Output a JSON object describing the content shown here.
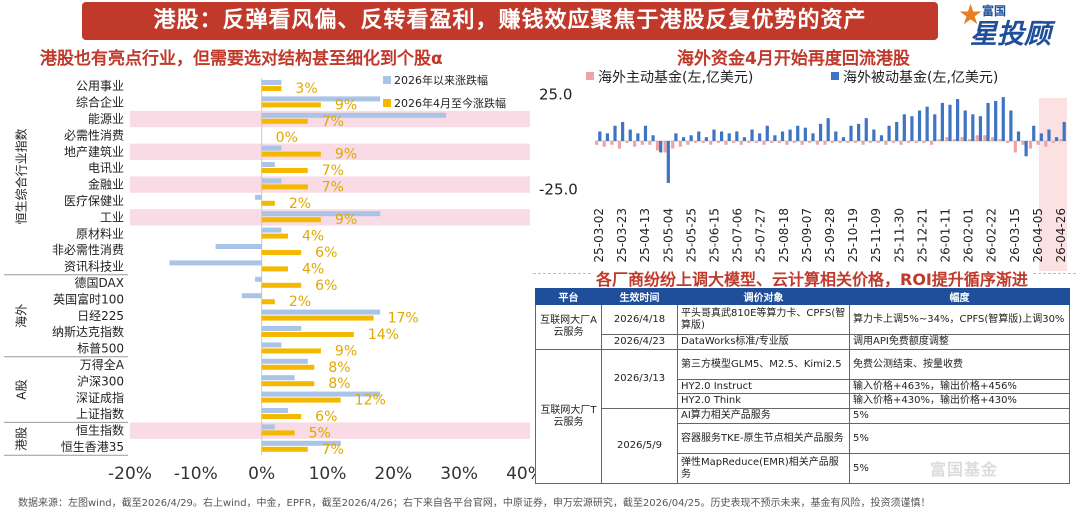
{
  "header": {
    "title": "港股：反弹看风偏、反转看盈利，赚钱效应聚焦于港股反复优势的资产"
  },
  "logo": {
    "small": "富国",
    "big": "星投顾"
  },
  "left_subtitle": "港股也有亮点行业，但需要选对结构甚至细化到个股α",
  "right_subtitle": "海外资金4月开始再度回流港股",
  "table_subtitle": "各厂商纷纷上调大模型、云计算相关价格，ROI提升循序渐进",
  "colors": {
    "title_bg": "#c0392b",
    "blue": "#a9c4e6",
    "gold": "#f5b800",
    "pink": "#f8dbe4",
    "active_blue": "#3f73c4",
    "active_red": "#f1a3a3"
  },
  "chart_data": [
    {
      "type": "bar",
      "orientation": "horizontal",
      "title": "港股也有亮点行业，但需要选对结构甚至细化到个股α",
      "categories": [
        "公用事业",
        "综合企业",
        "能源业",
        "必需性消费",
        "地产建筑业",
        "电讯业",
        "金融业",
        "医疗保健业",
        "工业",
        "原材料业",
        "非必需性消费",
        "资讯科技业",
        "德国DAX",
        "英国富时100",
        "日经225",
        "纳斯达克指数",
        "标普500",
        "万得全A",
        "沪深300",
        "深证成指",
        "上证指数",
        "恒生指数",
        "恒生香港35"
      ],
      "groups": [
        {
          "name": "恒生综合行业指数",
          "from": 0,
          "to": 11
        },
        {
          "name": "海外",
          "from": 12,
          "to": 16
        },
        {
          "name": "A股",
          "from": 17,
          "to": 20
        },
        {
          "name": "港股",
          "from": 21,
          "to": 22
        }
      ],
      "highlight_rows": [
        2,
        4,
        6,
        8,
        21
      ],
      "series": [
        {
          "name": "2026年以来涨跌幅",
          "color": "#a9c4e6",
          "values": [
            3,
            18,
            28,
            0,
            3,
            2,
            3,
            -1,
            18,
            3,
            -7,
            -14,
            -1,
            -3,
            18,
            6,
            3,
            7,
            5,
            18,
            4,
            2,
            12
          ]
        },
        {
          "name": "2026年4月至今涨跌幅",
          "color": "#f5b800",
          "values": [
            3,
            9,
            7,
            0,
            9,
            7,
            7,
            2,
            9,
            4,
            6,
            4,
            6,
            2,
            17,
            14,
            9,
            8,
            8,
            12,
            6,
            5,
            7
          ]
        }
      ],
      "data_labels": [
        "3%",
        "9%",
        "7%",
        "0%",
        "9%",
        "7%",
        "7%",
        "2%",
        "9%",
        "4%",
        "6%",
        "4%",
        "6%",
        "2%",
        "17%",
        "14%",
        "9%",
        "8%",
        "8%",
        "12%",
        "6%",
        "5%",
        "7%"
      ],
      "xticks": [
        "-20%",
        "-10%",
        "0%",
        "10%",
        "20%",
        "30%",
        "40%"
      ],
      "xlim": [
        -20,
        40
      ],
      "legend": "top-right"
    },
    {
      "type": "bar",
      "title": "海外资金4月开始再度回流港股",
      "series": [
        {
          "name": "海外主动基金(左,亿美元)",
          "color": "#f1a3a3",
          "values": [
            -2,
            -3,
            -2,
            -4,
            -1,
            -3,
            -2,
            -2,
            -5,
            -6,
            -4,
            -3,
            -2,
            -1,
            -1,
            -2,
            -1,
            -2,
            -1,
            -2,
            -1,
            -1,
            -2,
            -1,
            -1,
            -2,
            -1,
            -2,
            -1,
            -2,
            -2,
            -1,
            -1,
            -1,
            -1,
            -2,
            -1,
            -1,
            -2,
            -1,
            -2,
            -1,
            -1,
            -1,
            -2,
            1,
            2,
            1,
            2,
            1,
            3,
            3,
            2,
            1,
            -1,
            -6,
            -2,
            -4,
            -2,
            -3,
            -1,
            1
          ]
        },
        {
          "name": "海外被动基金(左,亿美元)",
          "color": "#3f73c4",
          "values": [
            5,
            4,
            8,
            10,
            6,
            4,
            8,
            3,
            -6,
            -22,
            4,
            2,
            3,
            5,
            2,
            6,
            5,
            4,
            5,
            2,
            6,
            4,
            8,
            3,
            5,
            6,
            8,
            7,
            4,
            9,
            12,
            5,
            2,
            8,
            9,
            12,
            6,
            3,
            8,
            10,
            14,
            13,
            16,
            18,
            14,
            20,
            19,
            22,
            16,
            14,
            13,
            20,
            21,
            23,
            16,
            5,
            -8,
            8,
            4,
            6,
            2,
            10
          ]
        }
      ],
      "xticks": [
        "25-03-02",
        "25-03-23",
        "25-04-13",
        "25-05-04",
        "25-05-25",
        "25-06-15",
        "25-07-06",
        "25-07-27",
        "25-08-18",
        "25-09-07",
        "25-09-28",
        "25-10-19",
        "25-11-09",
        "25-11-30",
        "25-12-21",
        "26-01-11",
        "26-02-01",
        "26-02-22",
        "26-03-15",
        "26-04-05",
        "26-04-26"
      ],
      "yticks": [
        "25.0",
        "-25.0"
      ],
      "ylim": [
        -32,
        32
      ],
      "legend": "top"
    }
  ],
  "table": {
    "headers": [
      "平台",
      "生效时间",
      "调价对象",
      "幅度"
    ],
    "blocks": [
      {
        "platform": "互联网大厂A云服务",
        "rows": [
          {
            "date": "2026/4/18",
            "object": "平头哥真武810E等算力卡、CPFS(智算版)",
            "range": "算力卡上调5%~34%，CPFS(智算版)上调30%"
          },
          {
            "date": "2026/4/23",
            "object": "DataWorks标准/专业版",
            "range": "调用API免费额度调整"
          }
        ]
      },
      {
        "platform": "互联网大厂T云服务",
        "rows": [
          {
            "date": "2026/3/13",
            "object": "第三方模型GLM5、M2.5、Kimi2.5",
            "range": "免费公测结束、按量收费"
          },
          {
            "date": "",
            "object": "HY2.0 Instruct",
            "range": "输入价格+463%，输出价格+456%"
          },
          {
            "date": "",
            "object": "HY2.0 Think",
            "range": "输入价格+430%，输出价格+430%"
          },
          {
            "date": "2026/5/9",
            "object": "AI算力相关产品服务",
            "range": "5%"
          },
          {
            "date": "",
            "object": "容器服务TKE-原生节点相关产品服务",
            "range": "5%"
          },
          {
            "date": "",
            "object": "弹性MapReduce(EMR)相关产品服务",
            "range": "5%"
          }
        ]
      }
    ]
  },
  "watermark": "富国基金",
  "source": "数据来源：左图wind，截至2026/4/29。右上wind，中金，EPFR，截至2026/4/26；右下来自各平台官网，中原证券，申万宏源研究，截至2026/04/25。历史表现不预示未来，基金有风险，投资须谨慎！"
}
